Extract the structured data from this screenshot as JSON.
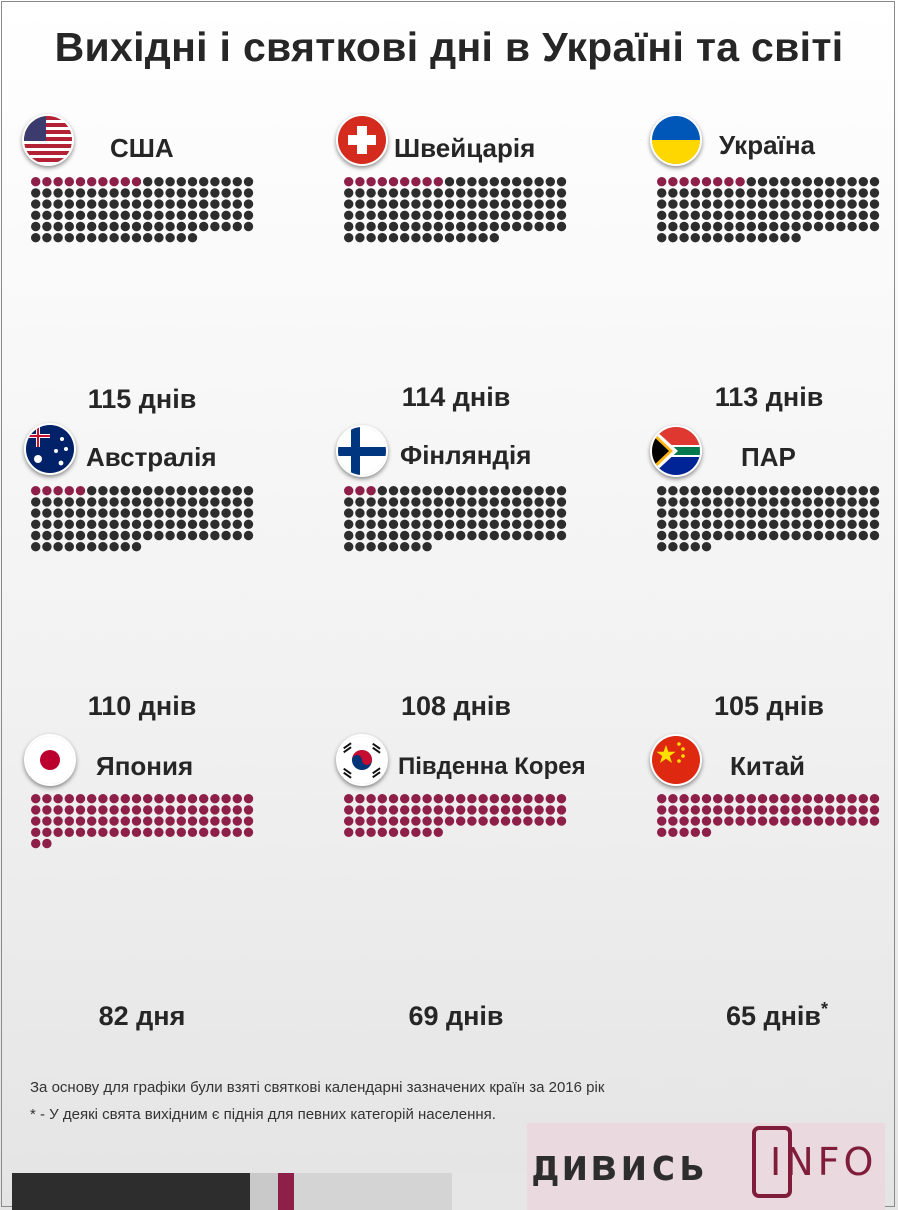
{
  "title": "Вихідні і святкові дні в Україні та світі",
  "colors": {
    "holiday": "#8e1f49",
    "weekend": "#2d2d2d",
    "text": "#262626"
  },
  "chart_data": {
    "type": "waffle",
    "total_days": 365,
    "unit": "днів",
    "countries": [
      {
        "name": "США",
        "flag": "usa-flag-icon",
        "label": "115 днів",
        "days_off": 115,
        "holidays": 10,
        "weekends": 105
      },
      {
        "name": "Швейцарія",
        "flag": "switzerland-flag-icon",
        "label": "114 днів",
        "days_off": 114,
        "holidays": 9,
        "weekends": 105
      },
      {
        "name": "Україна",
        "flag": "ukraine-flag-icon",
        "label": "113 днів",
        "days_off": 113,
        "holidays": 8,
        "weekends": 105
      },
      {
        "name": "Австралія",
        "flag": "australia-flag-icon",
        "label": "110 днів",
        "days_off": 110,
        "holidays": 5,
        "weekends": 105
      },
      {
        "name": "Фінляндія",
        "flag": "finland-flag-icon",
        "label": "108 днів",
        "days_off": 108,
        "holidays": 3,
        "weekends": 105
      },
      {
        "name": "ПАР",
        "flag": "south-africa-flag-icon",
        "label": "105 днів",
        "days_off": 105,
        "holidays": 0,
        "weekends": 105
      },
      {
        "name": "Япония",
        "flag": "japan-flag-icon",
        "label": "82 дня",
        "days_off": 82,
        "holidays": 82,
        "weekends": 0
      },
      {
        "name": "Південна Корея",
        "flag": "south-korea-flag-icon",
        "label": "69 днів",
        "days_off": 69,
        "holidays": 69,
        "weekends": 0
      },
      {
        "name": "Китай",
        "flag": "china-flag-icon",
        "label": "65 днів",
        "days_off": 65,
        "holidays": 65,
        "weekends": 0,
        "asterisk": "*"
      }
    ]
  },
  "footnotes": [
    "За основу для графіки були взяті святкові календарні зазначених країн за 2016 рік",
    "* - У деякі свята вихідним є піднія для певних категорій населення."
  ],
  "logo": {
    "word": "дивись",
    "suffix": "INFO"
  }
}
